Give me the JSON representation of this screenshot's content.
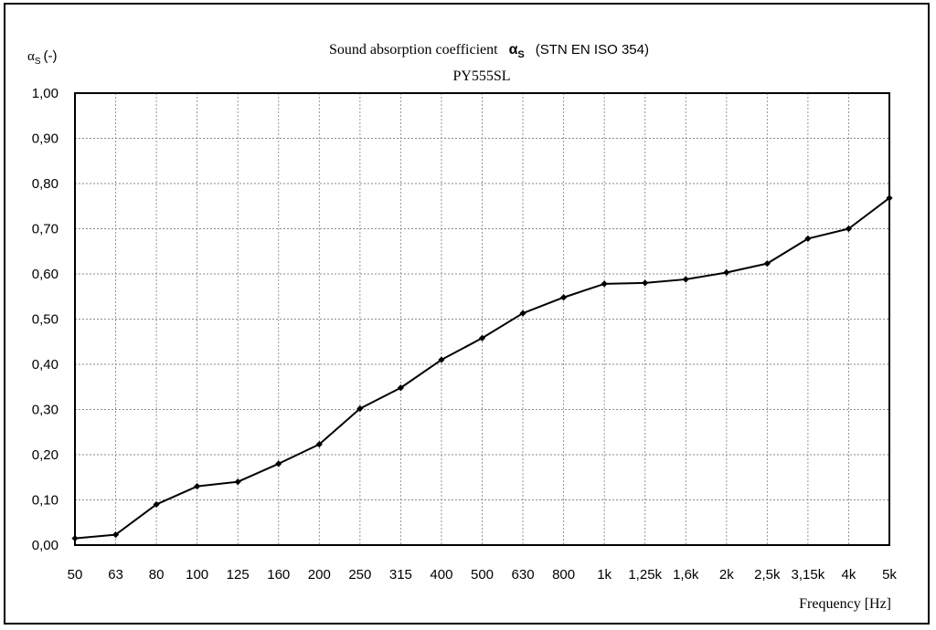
{
  "chart_data": {
    "type": "line",
    "title": "Sound absorption coefficient",
    "title_symbol": "α",
    "title_symbol_sub": "S",
    "title_standard": "(STN EN ISO 354)",
    "subtitle": "PY555SL",
    "ylabel_symbol": "α",
    "ylabel_sub": "S",
    "ylabel_unit": "(-)",
    "xlabel": "Frequency [Hz]",
    "categories": [
      "50",
      "63",
      "80",
      "100",
      "125",
      "160",
      "200",
      "250",
      "315",
      "400",
      "500",
      "630",
      "800",
      "1k",
      "1,25k",
      "1,6k",
      "2k",
      "2,5k",
      "3,15k",
      "4k",
      "5k"
    ],
    "y_ticks": [
      "0,00",
      "0,10",
      "0,20",
      "0,30",
      "0,40",
      "0,50",
      "0,60",
      "0,70",
      "0,80",
      "0,90",
      "1,00"
    ],
    "ylim": [
      0,
      1
    ],
    "grid": true,
    "series": [
      {
        "values": [
          0.015,
          0.023,
          0.09,
          0.13,
          0.14,
          0.18,
          0.223,
          0.302,
          0.348,
          0.41,
          0.458,
          0.513,
          0.548,
          0.578,
          0.58,
          0.588,
          0.603,
          0.623,
          0.678,
          0.7,
          0.768
        ],
        "color": "#000000"
      }
    ]
  }
}
